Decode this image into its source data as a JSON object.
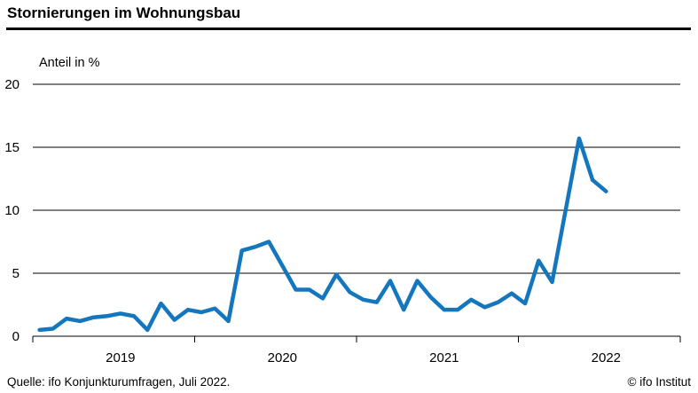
{
  "header": {
    "title": "Stornierungen im Wohnungsbau"
  },
  "footer": {
    "source": "Quelle: ifo Konjunkturumfragen, Juli 2022.",
    "copyright": "© ifo Institut"
  },
  "chart_data": {
    "type": "line",
    "title": "Stornierungen im Wohnungsbau",
    "ylabel": "Anteil in %",
    "unit": "%",
    "x_monthly_start": "2019-01",
    "x_monthly_end": "2022-07",
    "x_axis_year_labels": [
      "2019",
      "2020",
      "2021",
      "2022"
    ],
    "x_axis_total_months": 48,
    "y_ticks": [
      0,
      5,
      10,
      15,
      20
    ],
    "ylim": [
      0,
      20
    ],
    "grid": "horizontal",
    "legend": "none",
    "line_color": "#1477bd",
    "axis_color": "#000000",
    "series": [
      {
        "name": "Stornierungen im Wohnungsbau",
        "monthly_values": [
          0.5,
          0.6,
          1.4,
          1.2,
          1.5,
          1.6,
          1.8,
          1.6,
          0.5,
          2.6,
          1.3,
          2.1,
          1.9,
          2.2,
          1.2,
          6.8,
          7.1,
          7.5,
          5.6,
          3.7,
          3.7,
          3.0,
          4.9,
          3.5,
          2.9,
          2.7,
          4.4,
          2.1,
          4.4,
          3.1,
          2.1,
          2.1,
          2.9,
          2.3,
          2.7,
          3.4,
          2.6,
          6.0,
          4.3,
          10.0,
          15.7,
          12.4,
          11.5
        ]
      }
    ]
  }
}
